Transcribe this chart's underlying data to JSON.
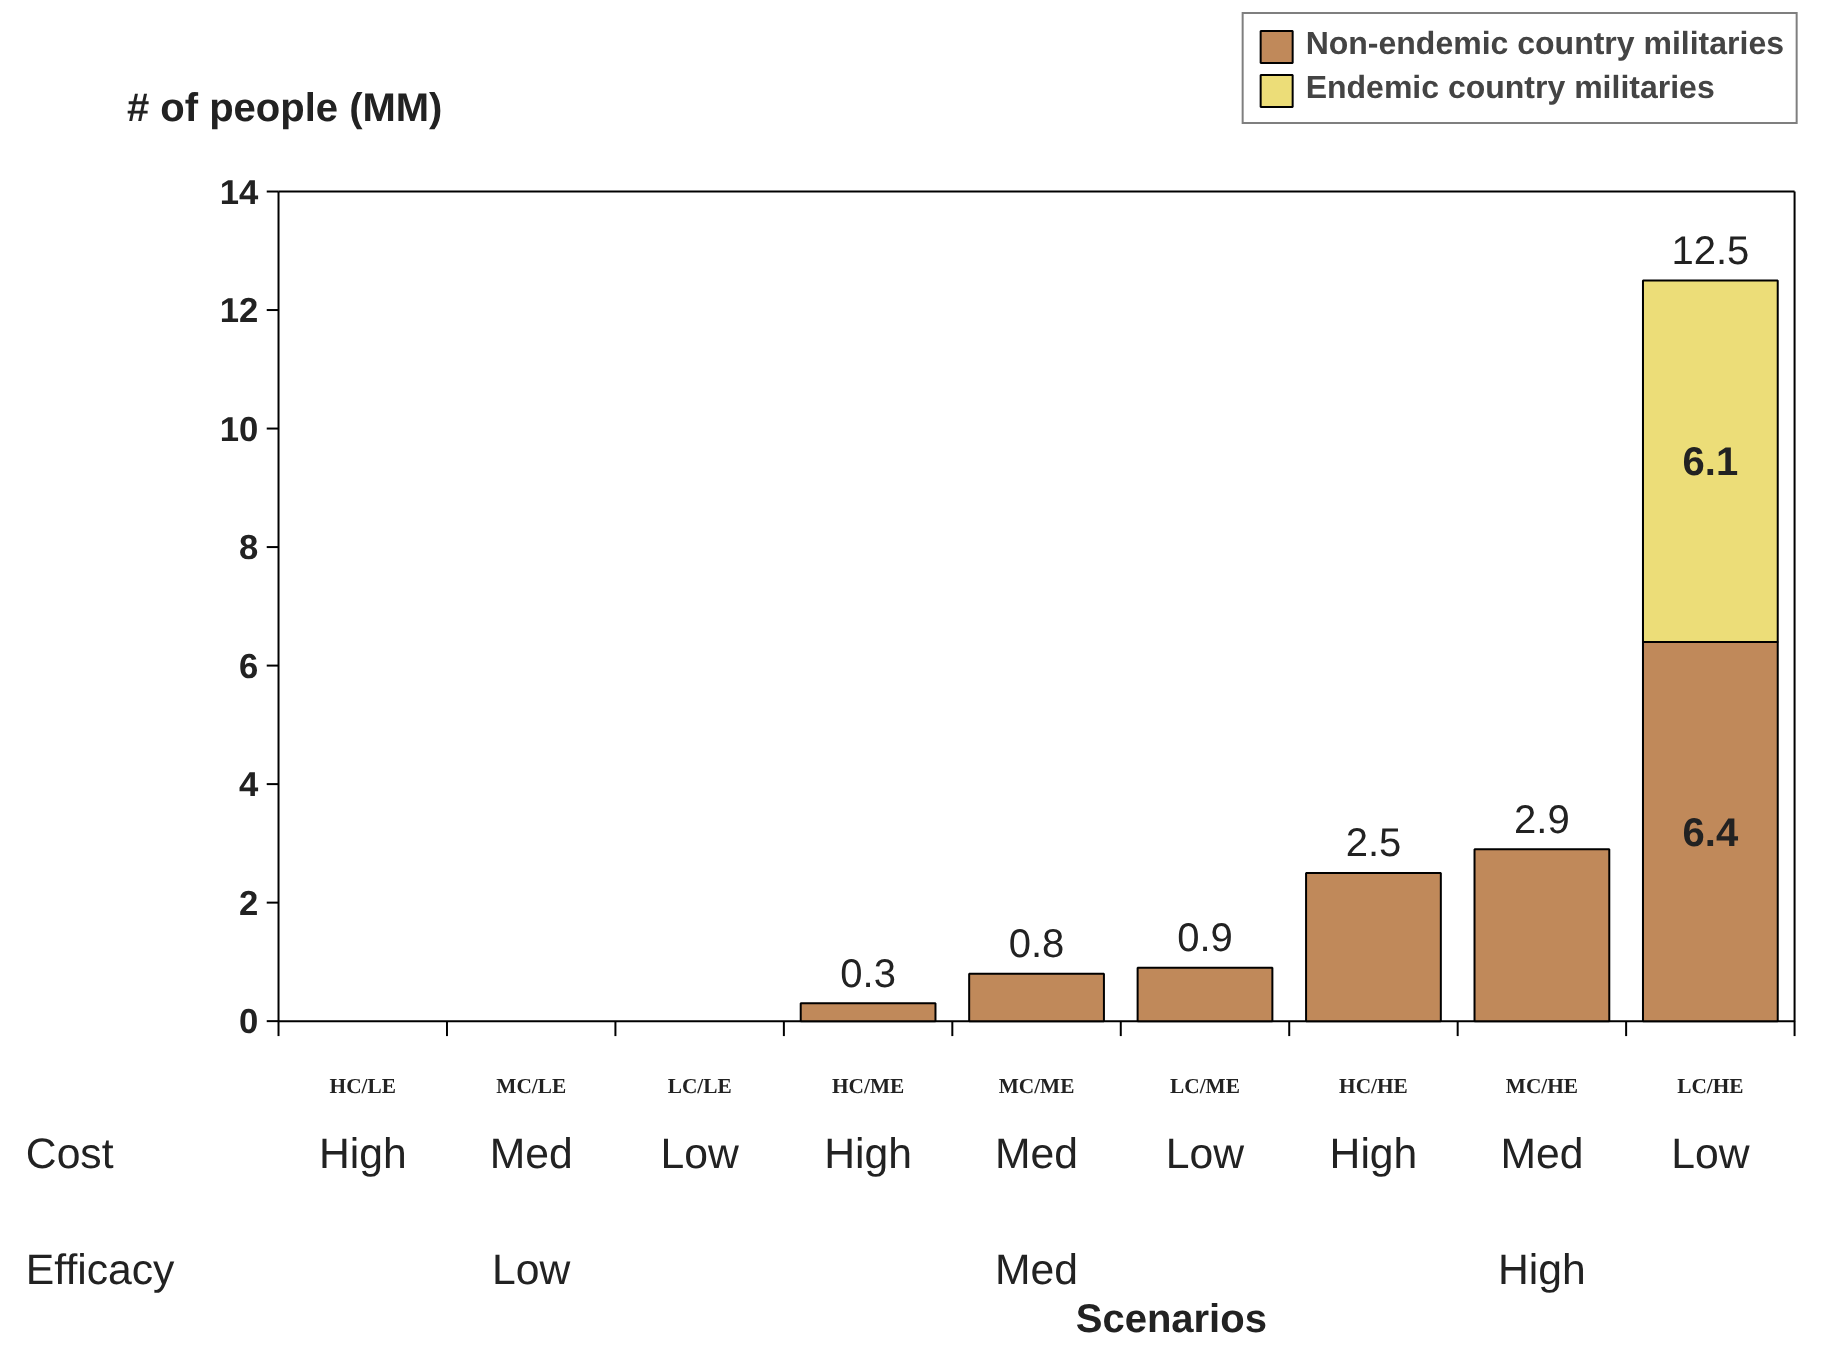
{
  "chart_data": {
    "type": "bar",
    "stacked": true,
    "ylabel": "# of people (MM)",
    "xlabel": "Scenarios",
    "categories": [
      "HC/LE",
      "MC/LE",
      "LC/LE",
      "HC/ME",
      "MC/ME",
      "LC/ME",
      "HC/HE",
      "MC/HE",
      "LC/HE"
    ],
    "series": [
      {
        "name": "Non-endemic country militaries",
        "color": "#c0895a",
        "values": [
          0,
          0,
          0,
          0.3,
          0.8,
          0.9,
          2.5,
          2.9,
          6.4
        ],
        "value_labels": [
          null,
          null,
          null,
          null,
          null,
          null,
          null,
          null,
          "6.4"
        ]
      },
      {
        "name": "Endemic country militaries",
        "color": "#ecdd78",
        "values": [
          0,
          0,
          0,
          0,
          0,
          0,
          0,
          0,
          6.1
        ],
        "value_labels": [
          null,
          null,
          null,
          null,
          null,
          null,
          null,
          null,
          "6.1"
        ]
      }
    ],
    "totals": [
      null,
      null,
      null,
      "0.3",
      "0.8",
      "0.9",
      "2.5",
      "2.9",
      "12.5"
    ],
    "ylim": [
      0,
      14
    ],
    "yticks": [
      0,
      2,
      4,
      6,
      8,
      10,
      12,
      14
    ],
    "grid": false,
    "legend": "top right",
    "annotations": [
      "Cost",
      "Efficacy",
      "High",
      "Med",
      "Low",
      "High",
      "Med",
      "Low",
      "High",
      "Med",
      "Low",
      "Low",
      "Med",
      "High"
    ]
  }
}
